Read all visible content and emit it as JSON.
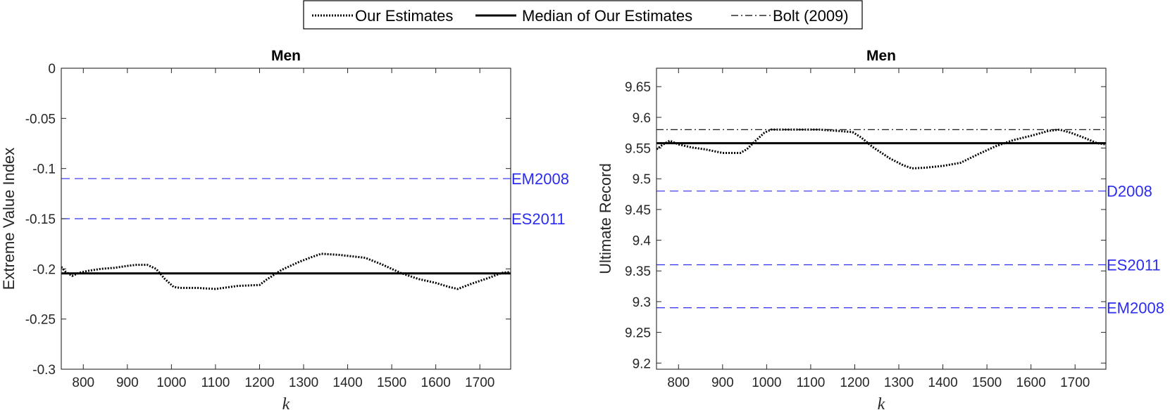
{
  "legend": {
    "entries": [
      {
        "label": "Our Estimates",
        "style": "dotted",
        "color": "#000000"
      },
      {
        "label": "Median of Our Estimates",
        "style": "solid",
        "color": "#000000"
      },
      {
        "label": "Bolt (2009)",
        "style": "dashdot",
        "color": "#000000"
      }
    ]
  },
  "colors": {
    "reference": "#2c2cf0",
    "series": "#000000"
  },
  "chart_data": [
    {
      "type": "line",
      "title": "Men",
      "xlabel": "k",
      "ylabel": "Extreme Value Index",
      "xlim": [
        750,
        1770
      ],
      "ylim": [
        -0.3,
        0
      ],
      "xticks": [
        800,
        900,
        1000,
        1100,
        1200,
        1300,
        1400,
        1500,
        1600,
        1700
      ],
      "yticks": [
        0,
        -0.05,
        -0.1,
        -0.15,
        -0.2,
        -0.25,
        -0.3
      ],
      "ytick_labels": [
        "0",
        "-0.05",
        "-0.1",
        "-0.15",
        "-0.2",
        "-0.25",
        "-0.3"
      ],
      "series": [
        {
          "name": "Our Estimates",
          "style": "dotted",
          "x": [
            750,
            760,
            775,
            790,
            810,
            840,
            870,
            900,
            920,
            945,
            965,
            985,
            1005,
            1020,
            1060,
            1100,
            1150,
            1200,
            1215,
            1250,
            1290,
            1320,
            1340,
            1380,
            1440,
            1480,
            1520,
            1560,
            1600,
            1630,
            1650,
            1680,
            1720,
            1750,
            1770
          ],
          "y": [
            -0.198,
            -0.203,
            -0.207,
            -0.204,
            -0.202,
            -0.2,
            -0.199,
            -0.197,
            -0.196,
            -0.196,
            -0.2,
            -0.21,
            -0.218,
            -0.219,
            -0.219,
            -0.22,
            -0.217,
            -0.216,
            -0.211,
            -0.201,
            -0.193,
            -0.188,
            -0.185,
            -0.186,
            -0.189,
            -0.196,
            -0.204,
            -0.21,
            -0.214,
            -0.218,
            -0.22,
            -0.215,
            -0.209,
            -0.204,
            -0.203
          ]
        },
        {
          "name": "Median of Our Estimates",
          "style": "solid",
          "x": [
            750,
            1770
          ],
          "y": [
            -0.2045,
            -0.2045
          ]
        }
      ],
      "reference_lines": [
        {
          "label": "EM2008",
          "value": -0.11
        },
        {
          "label": "ES2011",
          "value": -0.15
        }
      ]
    },
    {
      "type": "line",
      "title": "Men",
      "xlabel": "k",
      "ylabel": "Ultimate Record",
      "xlim": [
        750,
        1770
      ],
      "ylim": [
        9.19,
        9.68
      ],
      "xticks": [
        800,
        900,
        1000,
        1100,
        1200,
        1300,
        1400,
        1500,
        1600,
        1700
      ],
      "yticks": [
        9.2,
        9.25,
        9.3,
        9.35,
        9.4,
        9.45,
        9.5,
        9.55,
        9.6,
        9.65
      ],
      "ytick_labels": [
        "9.2",
        "9.25",
        "9.3",
        "9.35",
        "9.4",
        "9.45",
        "9.5",
        "9.55",
        "9.6",
        "9.65"
      ],
      "series": [
        {
          "name": "Our Estimates",
          "style": "dotted",
          "x": [
            750,
            765,
            780,
            800,
            830,
            860,
            900,
            940,
            955,
            975,
            995,
            1010,
            1030,
            1080,
            1120,
            1160,
            1195,
            1215,
            1240,
            1280,
            1310,
            1330,
            1360,
            1400,
            1440,
            1480,
            1520,
            1560,
            1600,
            1640,
            1665,
            1690,
            1720,
            1750,
            1770
          ],
          "y": [
            9.548,
            9.556,
            9.562,
            9.556,
            9.551,
            9.548,
            9.542,
            9.542,
            9.548,
            9.562,
            9.575,
            9.58,
            9.58,
            9.58,
            9.58,
            9.578,
            9.576,
            9.567,
            9.552,
            9.533,
            9.522,
            9.517,
            9.518,
            9.521,
            9.526,
            9.54,
            9.553,
            9.563,
            9.57,
            9.578,
            9.58,
            9.575,
            9.567,
            9.558,
            9.556
          ]
        },
        {
          "name": "Median of Our Estimates",
          "style": "solid",
          "x": [
            750,
            1770
          ],
          "y": [
            9.558,
            9.558
          ]
        },
        {
          "name": "Bolt (2009)",
          "style": "dashdot",
          "x": [
            750,
            1770
          ],
          "y": [
            9.58,
            9.58
          ]
        }
      ],
      "reference_lines": [
        {
          "label": "D2008",
          "value": 9.48
        },
        {
          "label": "ES2011",
          "value": 9.36
        },
        {
          "label": "EM2008",
          "value": 9.29
        }
      ]
    }
  ]
}
